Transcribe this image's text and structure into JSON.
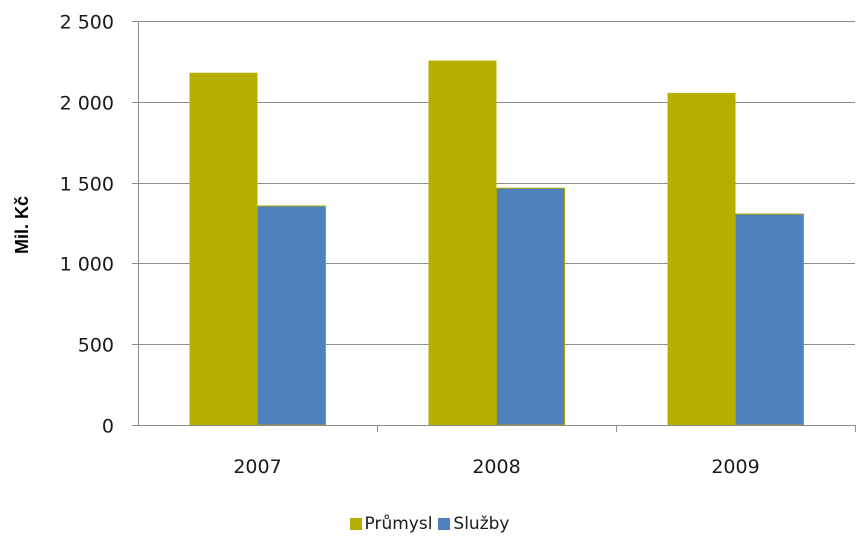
{
  "chart_data": {
    "type": "bar",
    "title": "",
    "xlabel": "",
    "ylabel": "Mil. Kč",
    "categories": [
      "2007",
      "2008",
      "2009"
    ],
    "series": [
      {
        "name": "Průmysl",
        "color": "#b5b000",
        "values": [
          2180,
          2255,
          2055
        ]
      },
      {
        "name": "Služby",
        "color": "#4f81bd",
        "values": [
          1355,
          1465,
          1305
        ]
      }
    ],
    "ylim": [
      0,
      2500
    ],
    "yticks": [
      0,
      500,
      1000,
      1500,
      2000,
      2500
    ],
    "ytick_labels": [
      "0",
      "500",
      "1 000",
      "1 500",
      "2 000",
      "2 500"
    ],
    "grid": true,
    "legend_position": "bottom"
  }
}
